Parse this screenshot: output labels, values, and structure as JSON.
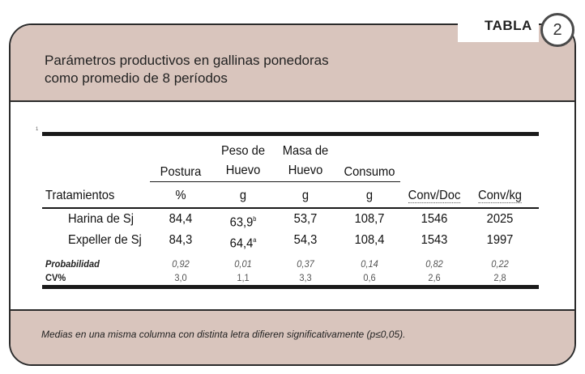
{
  "tab": {
    "label": "TABLA",
    "number": "2"
  },
  "header": {
    "title_line1": "Parámetros productivos en gallinas ponedoras",
    "title_line2": "como promedio de 8 períodos"
  },
  "table": {
    "tick": "1",
    "columns": {
      "postura": {
        "line1": "Postura",
        "unit": "%"
      },
      "peso": {
        "line1": "Peso de",
        "line2": "Huevo",
        "unit": "g"
      },
      "masa": {
        "line1": "Masa de",
        "line2": "Huevo",
        "unit": "g"
      },
      "consumo": {
        "line1": "Consumo",
        "unit": "g"
      },
      "convdoc": {
        "label": "Conv/Doc"
      },
      "convkg": {
        "label": "Conv/kg"
      }
    },
    "row_header": "Tratamientos",
    "rows": [
      {
        "name": "Harina de Sj",
        "postura": "84,4",
        "peso": "63,9",
        "peso_sup": "b",
        "masa": "53,7",
        "consumo": "108,7",
        "convdoc": "1546",
        "convkg": "2025"
      },
      {
        "name": "Expeller de Sj",
        "postura": "84,3",
        "peso": "64,4",
        "peso_sup": "a",
        "masa": "54,3",
        "consumo": "108,4",
        "convdoc": "1543",
        "convkg": "1997"
      }
    ],
    "stats": [
      {
        "name": "Probabilidad",
        "postura": "0,92",
        "peso": "0,01",
        "masa": "0,37",
        "consumo": "0,14",
        "convdoc": "0,82",
        "convkg": "0,22"
      },
      {
        "name": "CV%",
        "postura": "3,0",
        "peso": "1,1",
        "masa": "3,3",
        "consumo": "0,6",
        "convdoc": "2,6",
        "convkg": "2,8"
      }
    ]
  },
  "footer": {
    "note": "Medias en una misma columna con distinta letra difieren significativamente (p≤0,05)."
  }
}
